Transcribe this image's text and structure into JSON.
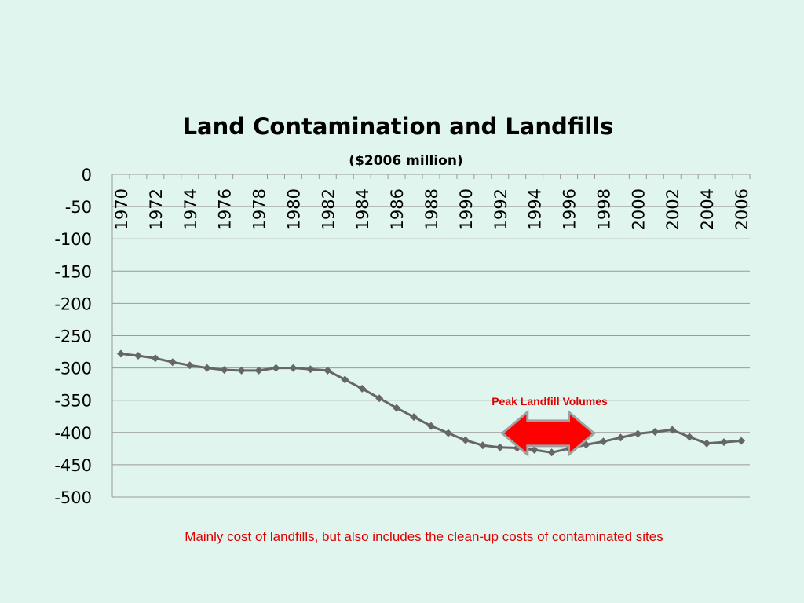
{
  "slide": {
    "footnote": "Mainly cost of landfills, but also includes the clean-up costs of contaminated sites"
  },
  "colors": {
    "background": "#dff5ee",
    "series": "#666666",
    "annotation": "#e00000",
    "arrow_fill": "#ff0000",
    "arrow_stroke": "#a0a0a0"
  },
  "chart_data": {
    "type": "line",
    "title": "Land Contamination and Landfills",
    "subtitle": "($2006 million)",
    "xlabel": "",
    "ylabel": "",
    "ylim": [
      -500,
      0
    ],
    "yticks": [
      0,
      -50,
      -100,
      -150,
      -200,
      -250,
      -300,
      -350,
      -400,
      -450,
      -500
    ],
    "x_tick_labels": [
      "1970",
      "1972",
      "1974",
      "1976",
      "1978",
      "1980",
      "1982",
      "1984",
      "1986",
      "1988",
      "1990",
      "1992",
      "1994",
      "1996",
      "1998",
      "2000",
      "2002",
      "2004",
      "2006"
    ],
    "x_axis_position": "top",
    "grid": true,
    "legend": "none",
    "x": [
      1970,
      1971,
      1972,
      1973,
      1974,
      1975,
      1976,
      1977,
      1978,
      1979,
      1980,
      1981,
      1982,
      1983,
      1984,
      1985,
      1986,
      1987,
      1988,
      1989,
      1990,
      1991,
      1992,
      1993,
      1994,
      1995,
      1996,
      1997,
      1998,
      1999,
      2000,
      2001,
      2002,
      2003,
      2004,
      2005,
      2006
    ],
    "series": [
      {
        "marker": "diamond",
        "values": [
          -278,
          -281,
          -285,
          -291,
          -296,
          -300,
          -303,
          -304,
          -304,
          -300,
          -300,
          -302,
          -304,
          -318,
          -332,
          -347,
          -362,
          -376,
          -390,
          -401,
          -412,
          -420,
          -423,
          -424,
          -427,
          -431,
          -425,
          -419,
          -414,
          -408,
          -402,
          -399,
          -396,
          -407,
          -417,
          -415,
          -413
        ]
      }
    ],
    "annotations": [
      {
        "text": "Peak Landfill Volumes",
        "shape": "double-arrow",
        "x_range": [
          1992,
          1997
        ],
        "y": -405
      }
    ]
  }
}
